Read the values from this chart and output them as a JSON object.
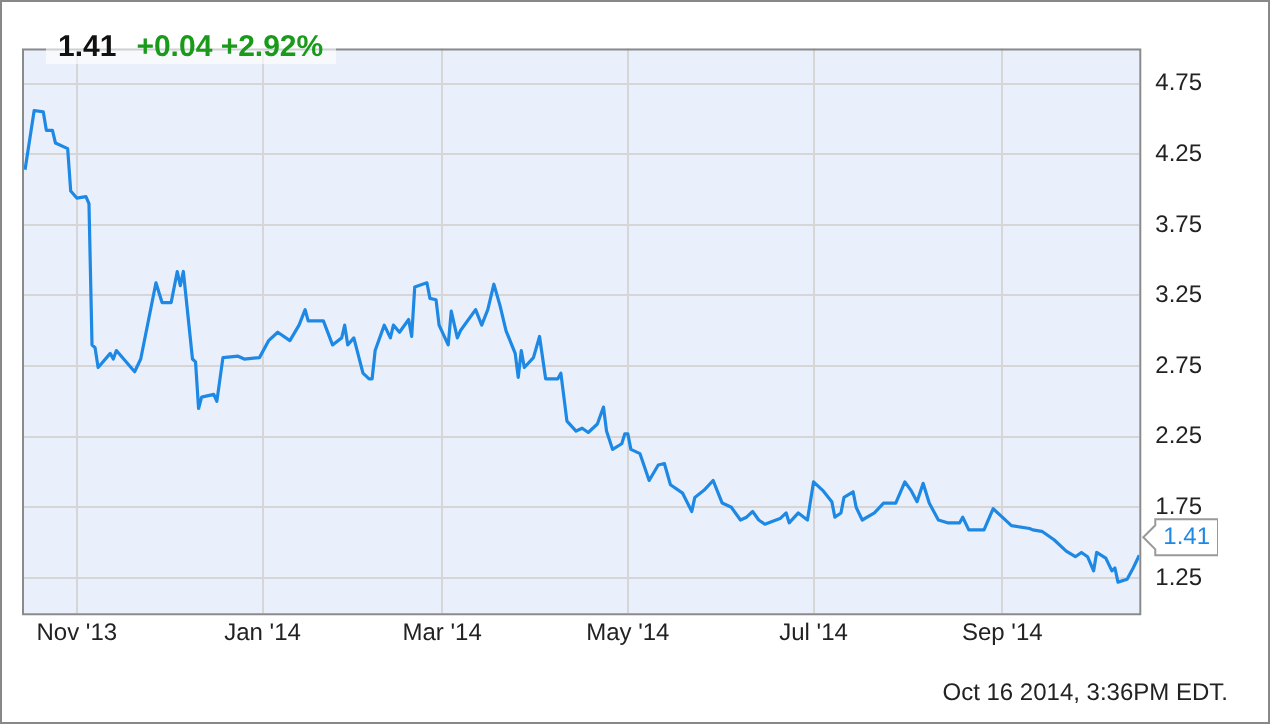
{
  "chart_data": {
    "type": "line",
    "title": "1.41",
    "subtitle": "+0.04  +2.92%",
    "annotations": [
      {
        "text": "1.41",
        "x": "2014-10-16",
        "y": 1.41
      },
      "Oct 16 2014, 3:36PM EDT."
    ],
    "xlim": [
      "2013-10-14",
      "2014-10-16"
    ],
    "xticks": [
      {
        "value": "2013-11-01",
        "label": "Nov '13"
      },
      {
        "value": "2014-01-01",
        "label": "Jan '14"
      },
      {
        "value": "2014-03-01",
        "label": "Mar '14"
      },
      {
        "value": "2014-05-01",
        "label": "May '14"
      },
      {
        "value": "2014-07-01",
        "label": "Jul '14"
      },
      {
        "value": "2014-09-01",
        "label": "Sep '14"
      }
    ],
    "ylim": [
      1.0,
      5.0
    ],
    "yticks": [
      1.25,
      1.75,
      2.25,
      2.75,
      3.25,
      3.75,
      4.25,
      4.75
    ],
    "grid": true,
    "legend": false,
    "marker": "none",
    "line_style": "solid",
    "series": [
      {
        "color": "#1e88e5",
        "x": [
          "2013-10-15",
          "2013-10-18",
          "2013-10-21",
          "2013-10-22",
          "2013-10-24",
          "2013-10-25",
          "2013-10-29",
          "2013-10-30",
          "2013-11-01",
          "2013-11-04",
          "2013-11-05",
          "2013-11-06",
          "2013-11-07",
          "2013-11-08",
          "2013-11-12",
          "2013-11-13",
          "2013-11-14",
          "2013-11-20",
          "2013-11-22",
          "2013-11-27",
          "2013-11-29",
          "2013-12-02",
          "2013-12-04",
          "2013-12-05",
          "2013-12-06",
          "2013-12-09",
          "2013-12-10",
          "2013-12-11",
          "2013-12-12",
          "2013-12-16",
          "2013-12-17",
          "2013-12-19",
          "2013-12-24",
          "2013-12-26",
          "2013-12-31",
          "2014-01-03",
          "2014-01-06",
          "2014-01-10",
          "2014-01-13",
          "2014-01-15",
          "2014-01-16",
          "2014-01-21",
          "2014-01-24",
          "2014-01-27",
          "2014-01-28",
          "2014-01-29",
          "2014-01-31",
          "2014-02-03",
          "2014-02-05",
          "2014-02-06",
          "2014-02-07",
          "2014-02-10",
          "2014-02-12",
          "2014-02-13",
          "2014-02-15",
          "2014-02-18",
          "2014-02-19",
          "2014-02-20",
          "2014-02-24",
          "2014-02-25",
          "2014-02-27",
          "2014-02-28",
          "2014-03-03",
          "2014-03-04",
          "2014-03-06",
          "2014-03-07",
          "2014-03-12",
          "2014-03-14",
          "2014-03-16",
          "2014-03-18",
          "2014-03-20",
          "2014-03-22",
          "2014-03-25",
          "2014-03-26",
          "2014-03-27",
          "2014-03-28",
          "2014-03-31",
          "2014-04-02",
          "2014-04-04",
          "2014-04-08",
          "2014-04-09",
          "2014-04-11",
          "2014-04-14",
          "2014-04-16",
          "2014-04-18",
          "2014-04-21",
          "2014-04-23",
          "2014-04-24",
          "2014-04-26",
          "2014-04-29",
          "2014-04-30",
          "2014-05-01",
          "2014-05-02",
          "2014-05-05",
          "2014-05-08",
          "2014-05-11",
          "2014-05-13",
          "2014-05-15",
          "2014-05-19",
          "2014-05-22",
          "2014-05-23",
          "2014-05-26",
          "2014-05-29",
          "2014-06-01",
          "2014-06-04",
          "2014-06-07",
          "2014-06-09",
          "2014-06-11",
          "2014-06-13",
          "2014-06-15",
          "2014-06-20",
          "2014-06-22",
          "2014-06-23",
          "2014-06-26",
          "2014-06-29",
          "2014-07-01",
          "2014-07-04",
          "2014-07-07",
          "2014-07-08",
          "2014-07-10",
          "2014-07-11",
          "2014-07-14",
          "2014-07-15",
          "2014-07-17",
          "2014-07-21",
          "2014-07-24",
          "2014-07-28",
          "2014-07-31",
          "2014-08-02",
          "2014-08-04",
          "2014-08-06",
          "2014-08-08",
          "2014-08-11",
          "2014-08-14",
          "2014-08-18",
          "2014-08-19",
          "2014-08-21",
          "2014-08-26",
          "2014-08-29",
          "2014-09-01",
          "2014-09-04",
          "2014-09-10",
          "2014-09-11",
          "2014-09-14",
          "2014-09-18",
          "2014-09-22",
          "2014-09-25",
          "2014-09-27",
          "2014-09-29",
          "2014-10-01",
          "2014-10-02",
          "2014-10-05",
          "2014-10-07",
          "2014-10-08",
          "2014-10-09",
          "2014-10-12",
          "2014-10-14",
          "2014-10-16"
        ],
        "values": [
          4.14,
          4.56,
          4.55,
          4.42,
          4.42,
          4.33,
          4.29,
          3.99,
          3.94,
          3.95,
          3.9,
          2.9,
          2.88,
          2.74,
          2.84,
          2.8,
          2.86,
          2.71,
          2.8,
          3.34,
          3.2,
          3.2,
          3.42,
          3.32,
          3.42,
          2.8,
          2.78,
          2.45,
          2.53,
          2.55,
          2.5,
          2.81,
          2.82,
          2.8,
          2.81,
          2.93,
          2.99,
          2.93,
          3.04,
          3.15,
          3.07,
          3.07,
          2.9,
          2.95,
          3.04,
          2.9,
          2.95,
          2.7,
          2.66,
          2.66,
          2.86,
          3.04,
          2.95,
          3.04,
          2.99,
          3.08,
          2.96,
          3.31,
          3.34,
          3.23,
          3.22,
          3.04,
          2.9,
          3.14,
          2.95,
          3.0,
          3.15,
          3.04,
          3.15,
          3.33,
          3.18,
          3.0,
          2.84,
          2.67,
          2.86,
          2.74,
          2.81,
          2.96,
          2.66,
          2.66,
          2.7,
          2.36,
          2.29,
          2.31,
          2.28,
          2.34,
          2.46,
          2.29,
          2.16,
          2.2,
          2.27,
          2.27,
          2.16,
          2.13,
          1.94,
          2.05,
          2.06,
          1.91,
          1.85,
          1.72,
          1.82,
          1.87,
          1.94,
          1.78,
          1.75,
          1.66,
          1.68,
          1.72,
          1.66,
          1.63,
          1.67,
          1.71,
          1.64,
          1.71,
          1.66,
          1.93,
          1.87,
          1.79,
          1.68,
          1.71,
          1.82,
          1.86,
          1.75,
          1.66,
          1.71,
          1.78,
          1.78,
          1.93,
          1.87,
          1.79,
          1.92,
          1.78,
          1.66,
          1.64,
          1.64,
          1.68,
          1.59,
          1.59,
          1.74,
          1.68,
          1.62,
          1.6,
          1.59,
          1.58,
          1.52,
          1.44,
          1.4,
          1.43,
          1.4,
          1.3,
          1.43,
          1.39,
          1.3,
          1.32,
          1.22,
          1.24,
          1.32,
          1.41
        ]
      }
    ]
  }
}
